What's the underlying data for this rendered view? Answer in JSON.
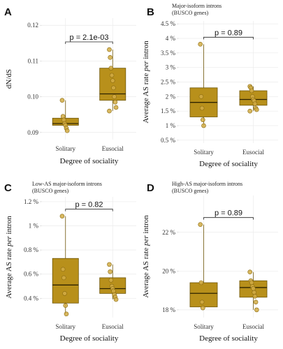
{
  "chart_data": [
    {
      "panel": "A",
      "type": "box",
      "subtitle": "",
      "ylabel": "dN/dS",
      "xlabel": "Degree of sociality",
      "categories": [
        "Solitary",
        "Eusocial"
      ],
      "ylim": [
        0.088,
        0.122
      ],
      "yticks": [
        0.09,
        0.1,
        0.11,
        0.12
      ],
      "ytick_labels": [
        "0.09",
        "0.10",
        "0.11",
        "0.12"
      ],
      "boxes": [
        {
          "category": "Solitary",
          "min": 0.0905,
          "q1": 0.092,
          "median": 0.0925,
          "q3": 0.094,
          "max": 0.099
        },
        {
          "category": "Eusocial",
          "min": 0.096,
          "q1": 0.099,
          "median": 0.1008,
          "q3": 0.108,
          "max": 0.1132
        }
      ],
      "points": [
        {
          "category": "Solitary",
          "values": [
            0.099,
            0.0945,
            0.0935,
            0.0925,
            0.092,
            0.0912,
            0.0905
          ]
        },
        {
          "category": "Eusocial",
          "values": [
            0.1132,
            0.111,
            0.108,
            0.106,
            0.1045,
            0.1025,
            0.1,
            0.0985,
            0.097,
            0.096
          ]
        }
      ],
      "pvalue": "p = 2.1e-03"
    },
    {
      "panel": "B",
      "type": "box",
      "subtitle": "Major-isoform introns\n(BUSCO genes)",
      "ylabel": "Average AS rate per intron",
      "xlabel": "Degree of sociality",
      "categories": [
        "Solitary",
        "Eusocial"
      ],
      "ylim": [
        0.4,
        4.6
      ],
      "yticks": [
        0.5,
        1,
        1.5,
        2,
        2.5,
        3,
        3.5,
        4,
        4.5
      ],
      "ytick_labels": [
        "0.5 %",
        "1 %",
        "1.5 %",
        "2 %",
        "2.5 %",
        "3 %",
        "3.5 %",
        "4 %",
        "4.5 %"
      ],
      "boxes": [
        {
          "category": "Solitary",
          "min": 1.0,
          "q1": 1.3,
          "median": 1.8,
          "q3": 2.3,
          "max": 3.8
        },
        {
          "category": "Eusocial",
          "min": 1.5,
          "q1": 1.7,
          "median": 1.9,
          "q3": 2.2,
          "max": 2.35
        }
      ],
      "points": [
        {
          "category": "Solitary",
          "values": [
            3.8,
            2.0,
            1.6,
            1.2,
            1.0
          ]
        },
        {
          "category": "Eusocial",
          "values": [
            2.35,
            2.3,
            2.2,
            2.0,
            1.9,
            1.85,
            1.75,
            1.6,
            1.55,
            1.5
          ]
        }
      ],
      "pvalue": "p = 0.89"
    },
    {
      "panel": "C",
      "type": "box",
      "subtitle": "Low-AS major-isoform introns\n(BUSCO genes)",
      "ylabel": "Average AS rate per intron",
      "xlabel": "Degree of sociality",
      "categories": [
        "Solitary",
        "Eusocial"
      ],
      "ylim": [
        0.24,
        1.24
      ],
      "yticks": [
        0.4,
        0.6,
        0.8,
        1.0,
        1.2
      ],
      "ytick_labels": [
        "0.4 %",
        "0.6 %",
        "0.8 %",
        "1 %",
        "1.2 %"
      ],
      "boxes": [
        {
          "category": "Solitary",
          "min": 0.27,
          "q1": 0.36,
          "median": 0.51,
          "q3": 0.73,
          "max": 1.08
        },
        {
          "category": "Eusocial",
          "min": 0.39,
          "q1": 0.44,
          "median": 0.48,
          "q3": 0.57,
          "max": 0.68
        }
      ],
      "points": [
        {
          "category": "Solitary",
          "values": [
            1.08,
            0.64,
            0.57,
            0.44,
            0.34,
            0.27
          ]
        },
        {
          "category": "Eusocial",
          "values": [
            0.68,
            0.62,
            0.55,
            0.5,
            0.48,
            0.46,
            0.43,
            0.41,
            0.39
          ]
        }
      ],
      "pvalue": "p = 0.82"
    },
    {
      "panel": "D",
      "type": "box",
      "subtitle": "High-AS major-isoform introns\n(BUSCO genes)",
      "ylabel": "Average AS rate per intron",
      "xlabel": "Degree of sociality",
      "categories": [
        "Solitary",
        "Eusocial"
      ],
      "ylim": [
        17.6,
        23.9
      ],
      "yticks": [
        18,
        20,
        22
      ],
      "ytick_labels": [
        "18 %",
        "20 %",
        "22 %"
      ],
      "boxes": [
        {
          "category": "Solitary",
          "min": 18.1,
          "q1": 18.15,
          "median": 18.85,
          "q3": 19.4,
          "max": 22.4
        },
        {
          "category": "Eusocial",
          "min": 18.0,
          "q1": 18.65,
          "median": 19.15,
          "q3": 19.5,
          "max": 19.95
        }
      ],
      "points": [
        {
          "category": "Solitary",
          "values": [
            22.4,
            19.4,
            18.4,
            18.1
          ]
        },
        {
          "category": "Eusocial",
          "values": [
            19.95,
            19.5,
            19.4,
            19.2,
            19.1,
            18.9,
            18.7,
            18.4,
            18.0
          ]
        }
      ],
      "pvalue": "p = 0.89"
    }
  ]
}
